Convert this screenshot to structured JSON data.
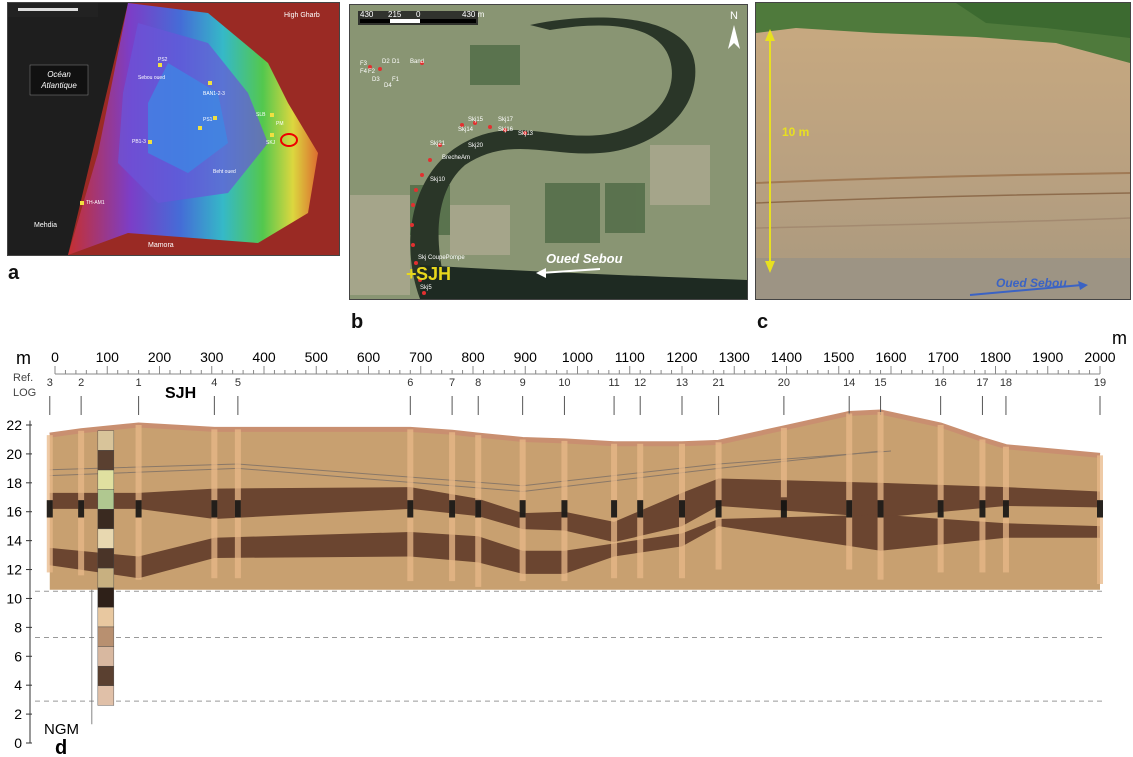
{
  "panels": {
    "a": {
      "label": "a",
      "ocean_label_line1": "Océan",
      "ocean_label_line2": "Atlantique",
      "places": [
        "High Gharb",
        "Mehdia",
        "Mamora",
        "Sebou oued",
        "Beht oued"
      ],
      "sites": [
        "PS2",
        "BAN1-2-3",
        "PS1",
        "SLB",
        "PM",
        "SKJ",
        "PB1-3",
        "TH-AM1"
      ]
    },
    "b": {
      "label": "b",
      "scale_labels": [
        "430",
        "215",
        "0",
        "430 m"
      ],
      "north": "N",
      "site_label": "SJH",
      "river_label": "Oued Sebou",
      "points": [
        "F3",
        "F4",
        "F2",
        "D2",
        "D1",
        "D3",
        "D4",
        "F1",
        "Band",
        "Skj15",
        "Skj17",
        "Skj14",
        "Skj16",
        "Skj13",
        "Skj20",
        "Skj21",
        "BrecheAm",
        "Skj10",
        "Skj CoupePompe",
        "Skj5"
      ]
    },
    "c": {
      "label": "c",
      "height_label": "10 m",
      "river_label": "Oued Sebou"
    },
    "d": {
      "label": "d",
      "x_unit_left": "m",
      "x_unit_right": "m",
      "x_ticks": [
        "0",
        "100",
        "200",
        "300",
        "400",
        "500",
        "600",
        "700",
        "800",
        "900",
        "1000",
        "1100",
        "1200",
        "1300",
        "1400",
        "1500",
        "1600",
        "1700",
        "1800",
        "1900",
        "2000"
      ],
      "y_unit": "m",
      "y_ticks": [
        "22",
        "20",
        "18",
        "16",
        "14",
        "12",
        "10",
        "8",
        "6",
        "4",
        "2",
        "0"
      ],
      "ref_label_line1": "Ref.",
      "ref_label_line2": "LOG",
      "log_numbers": [
        "3",
        "2",
        "1",
        "4",
        "5",
        "6",
        "7",
        "8",
        "9",
        "10",
        "11",
        "12",
        "13",
        "21",
        "20",
        "14",
        "15",
        "16",
        "17",
        "18",
        "19"
      ],
      "sjh_label": "SJH",
      "datum_label": "NGM"
    }
  },
  "colors": {
    "sediment": "#c8a070",
    "dark_layer": "#6b4530",
    "top_soil": "#c98f70",
    "river": "#3b63c4",
    "yellow_label": "#e8d81c"
  }
}
